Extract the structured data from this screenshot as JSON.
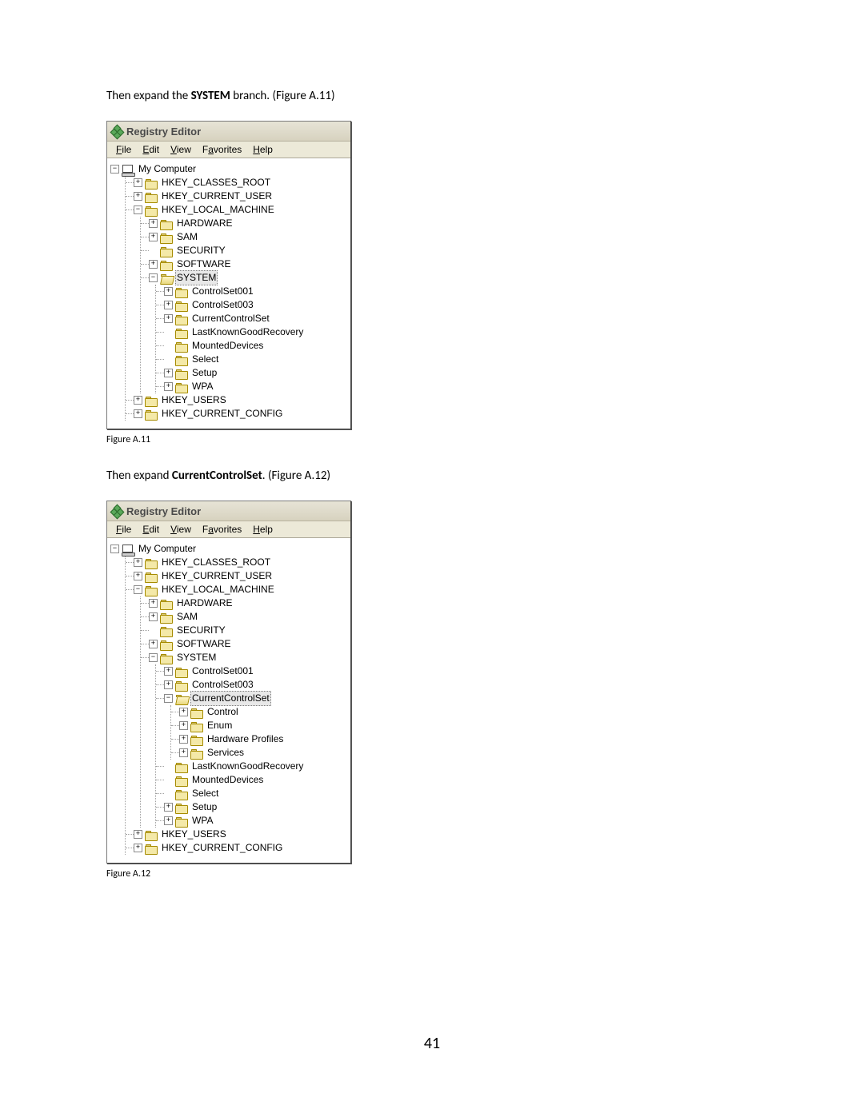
{
  "instructions": {
    "line1_pre": "Then expand the ",
    "line1_bold": "SYSTEM",
    "line1_post": " branch. (Figure A.11)",
    "line2_pre": "Then expand ",
    "line2_bold": "CurrentControlSet",
    "line2_post": ". (Figure A.12)"
  },
  "captions": {
    "fig1": "Figure A.11",
    "fig2": "Figure A.12"
  },
  "page_number": "41",
  "window": {
    "title": "Registry Editor",
    "menu": {
      "file": {
        "full": "File",
        "u": "F",
        "rest": "ile"
      },
      "edit": {
        "full": "Edit",
        "u": "E",
        "rest": "dit"
      },
      "view": {
        "full": "View",
        "u": "V",
        "rest": "iew"
      },
      "favorites": {
        "full": "Favorites",
        "pre": "F",
        "u": "a",
        "rest": "vorites"
      },
      "help": {
        "full": "Help",
        "u": "H",
        "rest": "elp"
      }
    }
  },
  "tree1": {
    "root": "My Computer",
    "hkcr": "HKEY_CLASSES_ROOT",
    "hkcu": "HKEY_CURRENT_USER",
    "hklm": "HKEY_LOCAL_MACHINE",
    "hardware": "HARDWARE",
    "sam": "SAM",
    "security": "SECURITY",
    "software": "SOFTWARE",
    "system": "SYSTEM",
    "cs001": "ControlSet001",
    "cs003": "ControlSet003",
    "ccs": "CurrentControlSet",
    "lkgr": "LastKnownGoodRecovery",
    "mounted": "MountedDevices",
    "select": "Select",
    "setup": "Setup",
    "wpa": "WPA",
    "hku": "HKEY_USERS",
    "hkcc": "HKEY_CURRENT_CONFIG"
  },
  "tree2": {
    "root": "My Computer",
    "hkcr": "HKEY_CLASSES_ROOT",
    "hkcu": "HKEY_CURRENT_USER",
    "hklm": "HKEY_LOCAL_MACHINE",
    "hardware": "HARDWARE",
    "sam": "SAM",
    "security": "SECURITY",
    "software": "SOFTWARE",
    "system": "SYSTEM",
    "cs001": "ControlSet001",
    "cs003": "ControlSet003",
    "ccs": "CurrentControlSet",
    "control": "Control",
    "enum": "Enum",
    "hwprofiles": "Hardware Profiles",
    "services": "Services",
    "lkgr": "LastKnownGoodRecovery",
    "mounted": "MountedDevices",
    "select": "Select",
    "setup": "Setup",
    "wpa": "WPA",
    "hku": "HKEY_USERS",
    "hkcc": "HKEY_CURRENT_CONFIG"
  },
  "glyph": {
    "plus": "+",
    "minus": "−"
  }
}
